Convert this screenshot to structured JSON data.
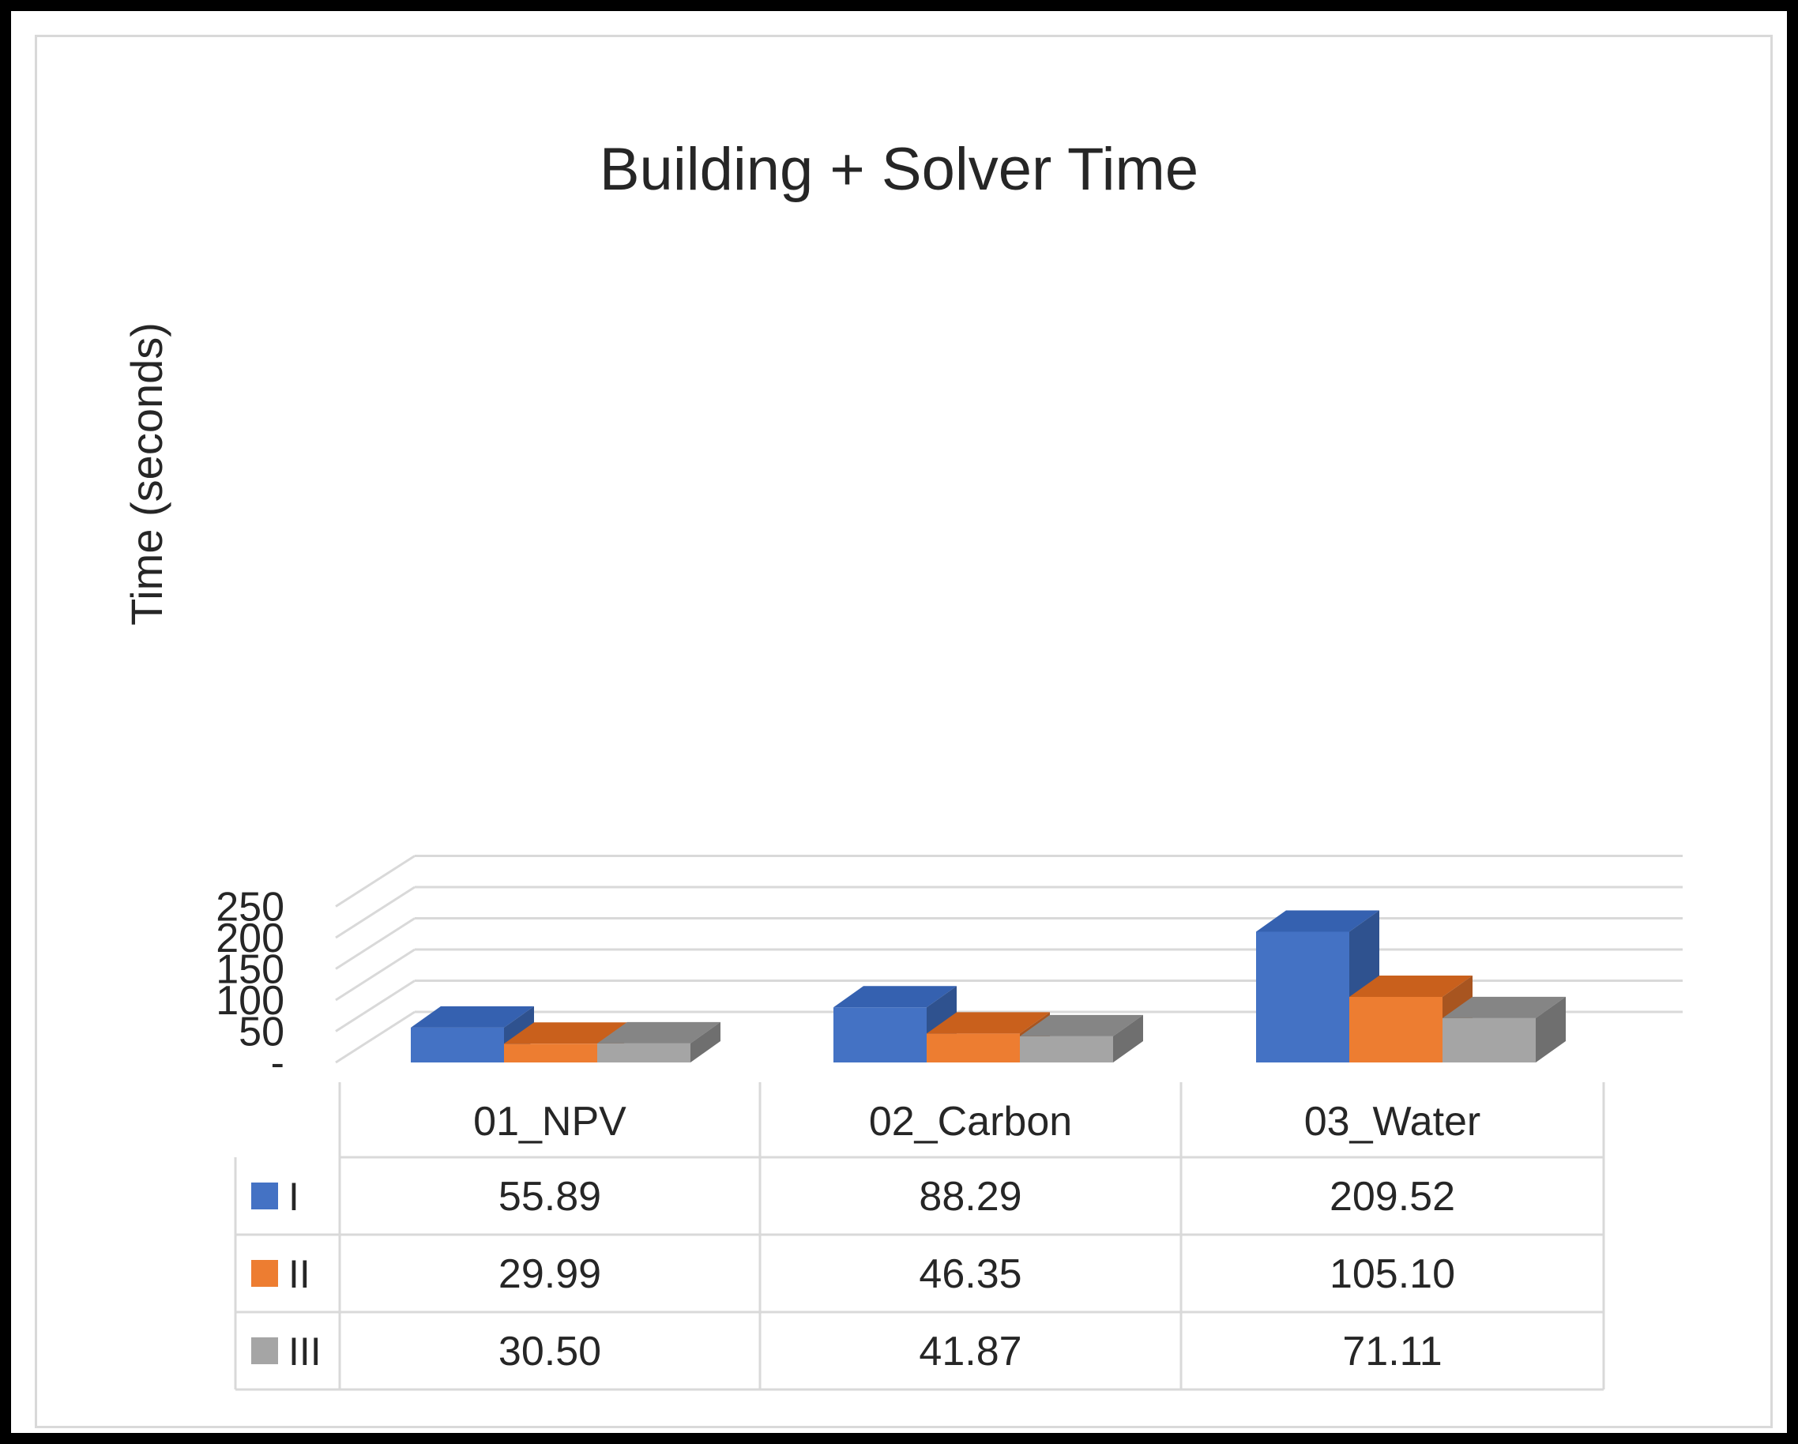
{
  "chart_data": {
    "type": "bar",
    "subtype": "3d-clustered-column-with-data-table",
    "title": "Building + Solver Time",
    "xlabel": "",
    "ylabel": "Time (seconds)",
    "ylim": [
      0,
      250
    ],
    "yticks": [
      0,
      50,
      100,
      150,
      200,
      250
    ],
    "ytick_labels": [
      "-",
      "50",
      "100",
      "150",
      "200",
      "250"
    ],
    "grid": true,
    "legend": "data-table-left",
    "categories": [
      "01_NPV",
      "02_Carbon",
      "03_Water"
    ],
    "series": [
      {
        "name": "I",
        "color": "#4472c4",
        "side": "#2f528f",
        "top": "#3561b0",
        "values": [
          55.89,
          88.29,
          209.52
        ],
        "labels": [
          "55.89",
          "88.29",
          "209.52"
        ]
      },
      {
        "name": "II",
        "color": "#ed7d31",
        "side": "#a85520",
        "top": "#c9601c",
        "values": [
          29.99,
          46.35,
          105.1
        ],
        "labels": [
          "29.99",
          "46.35",
          "105.10"
        ]
      },
      {
        "name": "III",
        "color": "#a5a5a5",
        "side": "#6f6f6f",
        "top": "#858585",
        "values": [
          30.5,
          41.87,
          71.11
        ],
        "labels": [
          "30.50",
          "41.87",
          "71.11"
        ]
      }
    ]
  }
}
